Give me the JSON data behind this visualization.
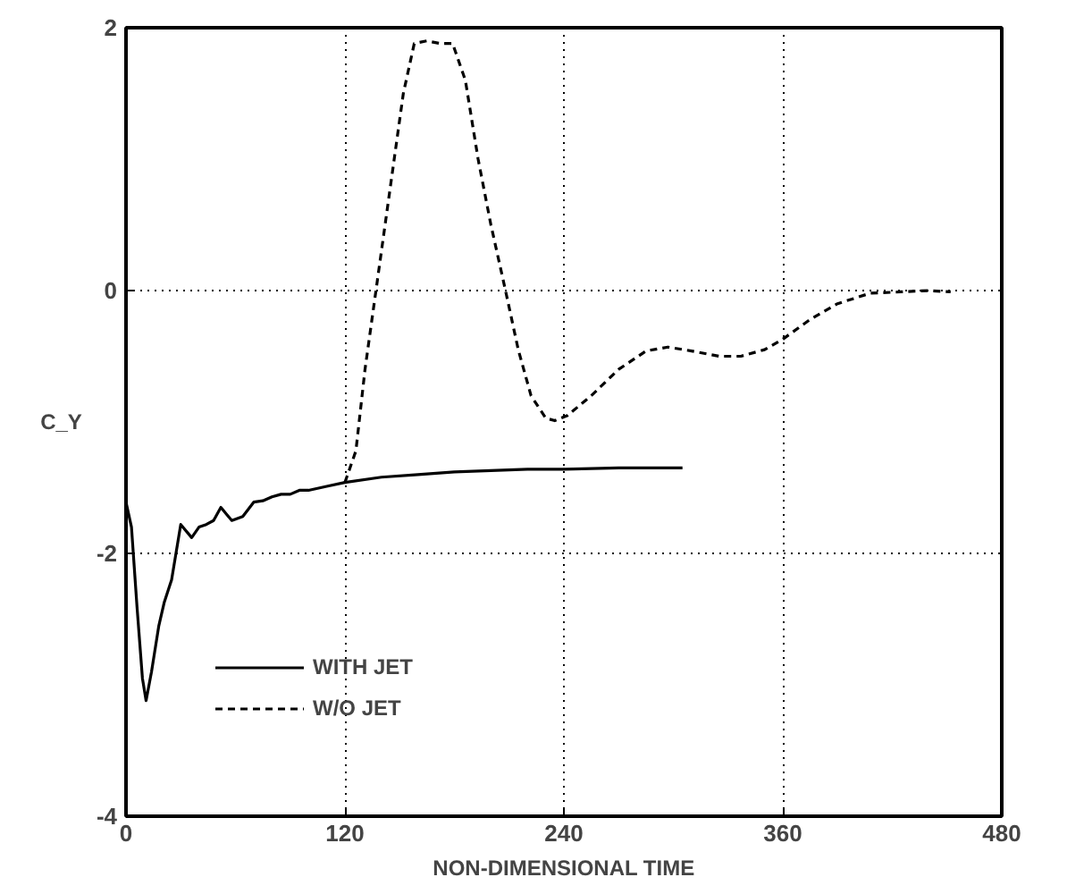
{
  "chart_data": {
    "type": "line",
    "xlabel": "NON-DIMENSIONAL TIME",
    "ylabel": "C_Y",
    "xlim": [
      0,
      480
    ],
    "ylim": [
      -4,
      2
    ],
    "xticks": [
      0,
      120,
      240,
      360,
      480
    ],
    "yticks": [
      -4,
      -2,
      0,
      2
    ],
    "grid": true,
    "legend": "bottom left",
    "series": [
      {
        "name": "WITH JET",
        "color": "#000000",
        "line_style": "solid",
        "x": [
          0,
          3,
          6,
          9,
          11,
          14,
          18,
          21,
          25,
          30,
          36,
          40,
          44,
          48,
          52,
          55,
          58,
          64,
          70,
          75,
          80,
          85,
          90,
          95,
          100,
          110,
          120,
          140,
          160,
          180,
          200,
          220,
          240,
          270,
          305
        ],
        "values": [
          -1.61,
          -1.8,
          -2.4,
          -2.95,
          -3.12,
          -2.9,
          -2.55,
          -2.37,
          -2.2,
          -1.78,
          -1.88,
          -1.8,
          -1.78,
          -1.75,
          -1.65,
          -1.7,
          -1.75,
          -1.72,
          -1.61,
          -1.6,
          -1.57,
          -1.55,
          -1.55,
          -1.52,
          -1.52,
          -1.49,
          -1.46,
          -1.42,
          -1.4,
          -1.38,
          -1.37,
          -1.36,
          -1.36,
          -1.35,
          -1.35
        ]
      },
      {
        "name": "W/O JET",
        "color": "#000000",
        "line_style": "dashed",
        "x": [
          120,
          126,
          131,
          137,
          145,
          152,
          158,
          165,
          172,
          179,
          186,
          193,
          200,
          208,
          215,
          222,
          230,
          235,
          242,
          255,
          270,
          285,
          297,
          310,
          325,
          337,
          350,
          360,
          375,
          390,
          408,
          425,
          440,
          452
        ],
        "values": [
          -1.46,
          -1.22,
          -0.6,
          0,
          0.8,
          1.5,
          1.88,
          1.9,
          1.88,
          1.88,
          1.6,
          1.0,
          0.5,
          0,
          -0.45,
          -0.8,
          -0.97,
          -0.99,
          -0.95,
          -0.8,
          -0.6,
          -0.46,
          -0.43,
          -0.46,
          -0.5,
          -0.5,
          -0.45,
          -0.37,
          -0.22,
          -0.1,
          -0.02,
          -0.01,
          0,
          -0.01
        ]
      }
    ]
  }
}
